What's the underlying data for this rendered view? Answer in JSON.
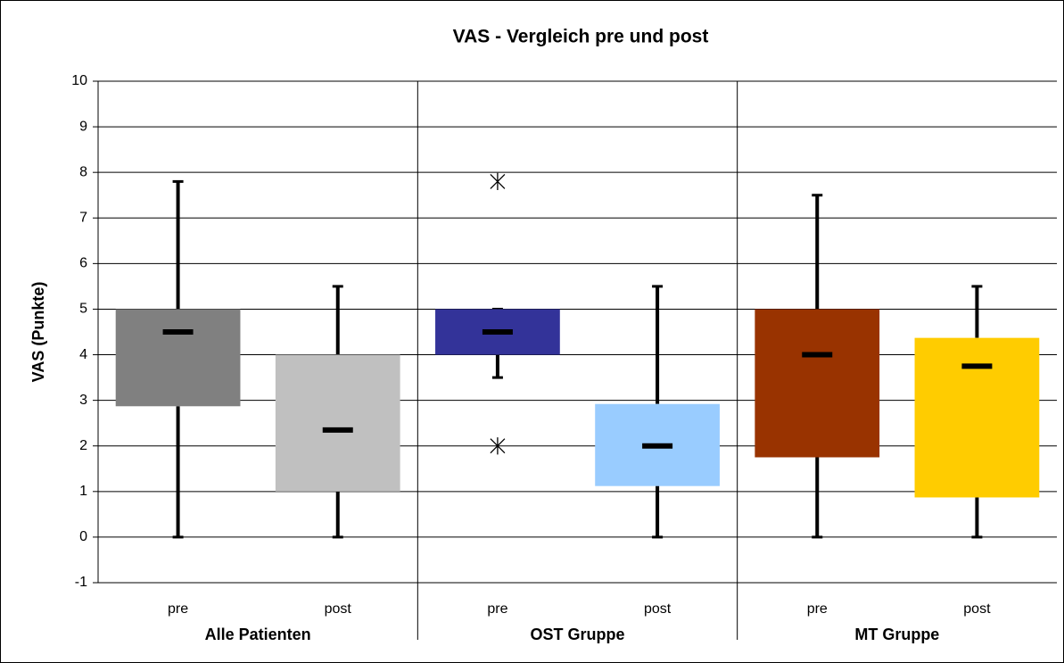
{
  "chart_data": {
    "type": "box",
    "title": "VAS - Vergleich pre und post",
    "y_label": "VAS (Punkte)",
    "groups": [
      "Alle Patienten",
      "OST Gruppe",
      "MT Gruppe"
    ],
    "categories": [
      "pre",
      "post",
      "pre",
      "post",
      "pre",
      "post"
    ],
    "boxes": [
      {
        "min": 0,
        "q1": 2.87,
        "median": 4.5,
        "q3": 5.0,
        "max": 7.8,
        "color": "#808080",
        "outliers": []
      },
      {
        "min": 0,
        "q1": 1.0,
        "median": 2.35,
        "q3": 4.0,
        "max": 5.5,
        "color": "#c0c0c0",
        "outliers": []
      },
      {
        "min": 3.5,
        "q1": 4.0,
        "median": 4.5,
        "q3": 5.0,
        "max": 5.0,
        "color": "#333399",
        "outliers": [
          7.8,
          2.0
        ]
      },
      {
        "min": 0,
        "q1": 1.12,
        "median": 2.0,
        "q3": 2.92,
        "max": 5.5,
        "color": "#99ccff",
        "outliers": []
      },
      {
        "min": 0,
        "q1": 1.75,
        "median": 4.0,
        "q3": 5.0,
        "max": 7.5,
        "color": "#993300",
        "outliers": []
      },
      {
        "min": 0,
        "q1": 0.87,
        "median": 3.75,
        "q3": 4.37,
        "max": 5.5,
        "color": "#ffcc00",
        "outliers": []
      }
    ],
    "ylim": [
      -1,
      10
    ],
    "yticks": [
      -1,
      0,
      1,
      2,
      3,
      4,
      5,
      6,
      7,
      8,
      9,
      10
    ],
    "grid": true
  }
}
